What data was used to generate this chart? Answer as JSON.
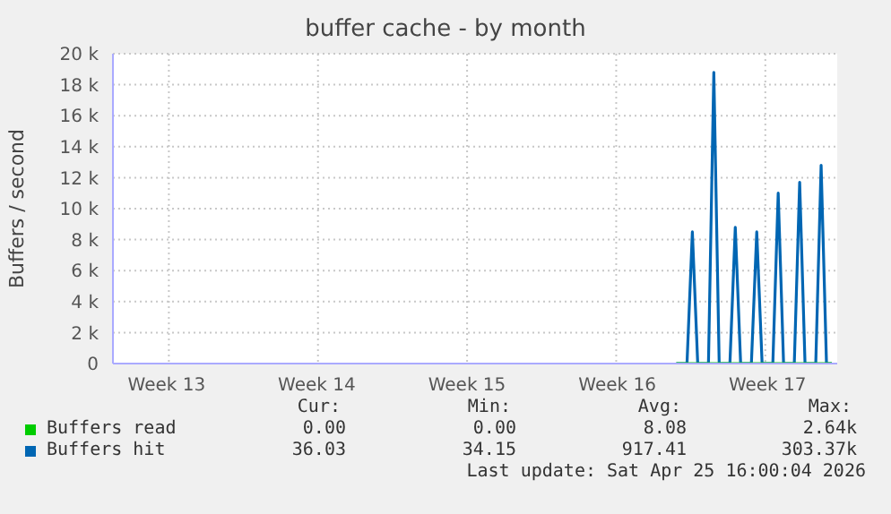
{
  "chart_data": {
    "type": "line",
    "title": "buffer cache - by month",
    "ylabel": "Buffers / second",
    "categories": [
      null,
      null,
      null,
      null,
      null,
      null,
      null,
      null,
      null,
      null,
      "Week 13",
      null,
      null,
      null,
      null,
      null,
      null,
      null,
      null,
      null,
      null,
      null,
      null,
      null,
      null,
      null,
      null,
      null,
      null,
      null,
      null,
      null,
      null,
      null,
      null,
      null,
      null,
      null,
      "Week 14",
      null,
      null,
      null,
      null,
      null,
      null,
      null,
      null,
      null,
      null,
      null,
      null,
      null,
      null,
      null,
      null,
      null,
      null,
      null,
      null,
      null,
      null,
      null,
      null,
      null,
      null,
      null,
      "Week 15",
      null,
      null,
      null,
      null,
      null,
      null,
      null,
      null,
      null,
      null,
      null,
      null,
      null,
      null,
      null,
      null,
      null,
      null,
      null,
      null,
      null,
      null,
      null,
      null,
      null,
      null,
      null,
      "Week 16",
      null,
      null,
      null,
      null,
      null,
      null,
      null,
      null,
      null,
      null,
      null,
      null,
      null,
      null,
      null,
      null,
      null,
      null,
      null,
      null,
      null,
      null,
      null,
      null,
      null,
      null,
      null,
      "Week 17",
      null,
      null,
      null,
      null,
      null,
      null,
      null,
      null,
      null,
      null,
      null,
      null,
      null
    ],
    "ylim": [
      0,
      20000
    ],
    "yticks": [
      {
        "value": 0,
        "label": "0"
      },
      {
        "value": 2000,
        "label": "2 k"
      },
      {
        "value": 4000,
        "label": "4 k"
      },
      {
        "value": 6000,
        "label": "6 k"
      },
      {
        "value": 8000,
        "label": "8 k"
      },
      {
        "value": 10000,
        "label": "10 k"
      },
      {
        "value": 12000,
        "label": "12 k"
      },
      {
        "value": 14000,
        "label": "14 k"
      },
      {
        "value": 16000,
        "label": "16 k"
      },
      {
        "value": 18000,
        "label": "18 k"
      },
      {
        "value": 20000,
        "label": "20 k"
      }
    ],
    "grid": true,
    "legend": "bottom",
    "marker": "none",
    "series": [
      {
        "name": "Buffers read",
        "color": "#00cc00",
        "values": [
          null,
          null,
          null,
          null,
          null,
          null,
          null,
          null,
          null,
          null,
          null,
          null,
          null,
          null,
          null,
          null,
          null,
          null,
          null,
          null,
          null,
          null,
          null,
          null,
          null,
          null,
          null,
          null,
          null,
          null,
          null,
          null,
          null,
          null,
          null,
          null,
          null,
          null,
          null,
          null,
          null,
          null,
          null,
          null,
          null,
          null,
          null,
          null,
          null,
          null,
          null,
          null,
          null,
          null,
          null,
          null,
          null,
          null,
          null,
          null,
          null,
          null,
          null,
          null,
          null,
          null,
          null,
          null,
          null,
          null,
          null,
          null,
          null,
          null,
          null,
          null,
          null,
          null,
          null,
          null,
          null,
          null,
          null,
          null,
          null,
          null,
          null,
          null,
          null,
          null,
          null,
          null,
          null,
          null,
          null,
          null,
          null,
          null,
          null,
          null,
          null,
          null,
          null,
          null,
          null,
          0,
          0,
          0,
          0,
          0,
          0,
          0,
          0,
          0,
          0,
          0,
          0,
          0,
          0,
          0,
          0,
          0,
          0,
          0,
          0,
          0,
          0,
          0,
          0,
          0,
          0,
          0,
          0,
          0,
          0,
          null
        ]
      },
      {
        "name": "Buffers hit",
        "color": "#0066b3",
        "values": [
          null,
          null,
          null,
          null,
          null,
          null,
          null,
          null,
          null,
          null,
          null,
          null,
          null,
          null,
          null,
          null,
          null,
          null,
          null,
          null,
          null,
          null,
          null,
          null,
          null,
          null,
          null,
          null,
          null,
          null,
          null,
          null,
          null,
          null,
          null,
          null,
          null,
          null,
          null,
          null,
          null,
          null,
          null,
          null,
          null,
          null,
          null,
          null,
          null,
          null,
          null,
          null,
          null,
          null,
          null,
          null,
          null,
          null,
          null,
          null,
          null,
          null,
          null,
          null,
          null,
          null,
          null,
          null,
          null,
          null,
          null,
          null,
          null,
          null,
          null,
          null,
          null,
          null,
          null,
          null,
          null,
          null,
          null,
          null,
          null,
          null,
          null,
          null,
          null,
          null,
          null,
          null,
          null,
          null,
          null,
          null,
          null,
          null,
          null,
          null,
          null,
          null,
          null,
          null,
          null,
          0,
          0,
          0,
          8500,
          0,
          0,
          0,
          18800,
          0,
          0,
          0,
          8800,
          0,
          0,
          0,
          8500,
          0,
          0,
          0,
          11000,
          0,
          0,
          0,
          11700,
          0,
          0,
          0,
          12800,
          0,
          0,
          null
        ]
      }
    ],
    "annotations": [
      "Cur:",
      "Min:",
      "Avg:",
      "Max:",
      "0.00",
      "0.00",
      "8.08",
      "2.64k",
      "36.03",
      "34.15",
      "917.41",
      "303.37k",
      "Last update: Sat Apr 25 16:00:04 2026"
    ]
  }
}
